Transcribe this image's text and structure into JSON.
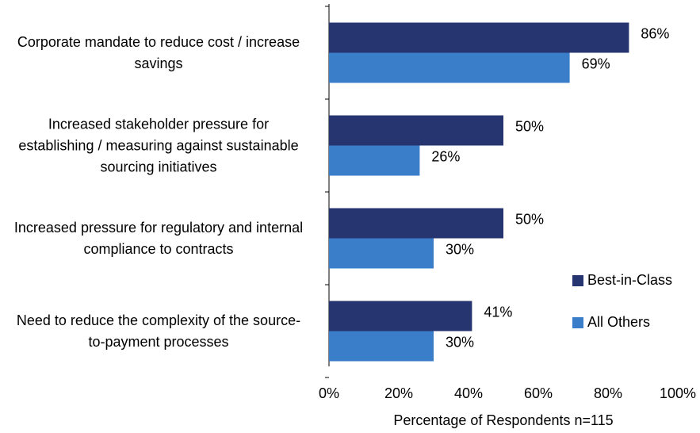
{
  "chart_data": {
    "type": "barh",
    "categories": [
      "Corporate mandate to reduce cost / increase savings",
      "Increased stakeholder pressure for establishing / measuring against sustainable sourcing initiatives",
      "Increased pressure for regulatory and internal compliance to contracts",
      "Need to reduce the complexity of the source-to-payment processes"
    ],
    "series": [
      {
        "name": "Best-in-Class",
        "color": "#263470",
        "values": [
          86,
          50,
          50,
          41
        ],
        "value_labels": [
          "86%",
          "50%",
          "50%",
          "41%"
        ]
      },
      {
        "name": "All Others",
        "color": "#3a7dc9",
        "values": [
          69,
          26,
          30,
          30
        ],
        "value_labels": [
          "69%",
          "26%",
          "30%",
          "30%"
        ]
      }
    ],
    "xlim": [
      0,
      100
    ],
    "xticks": [
      {
        "value": 0,
        "label": "0%"
      },
      {
        "value": 20,
        "label": "20%"
      },
      {
        "value": 40,
        "label": "40%"
      },
      {
        "value": 60,
        "label": "60%"
      },
      {
        "value": 80,
        "label": "80%"
      },
      {
        "value": 100,
        "label": "100%"
      }
    ],
    "xlabel": "Percentage of Respondents  n=115",
    "legend": "right"
  }
}
